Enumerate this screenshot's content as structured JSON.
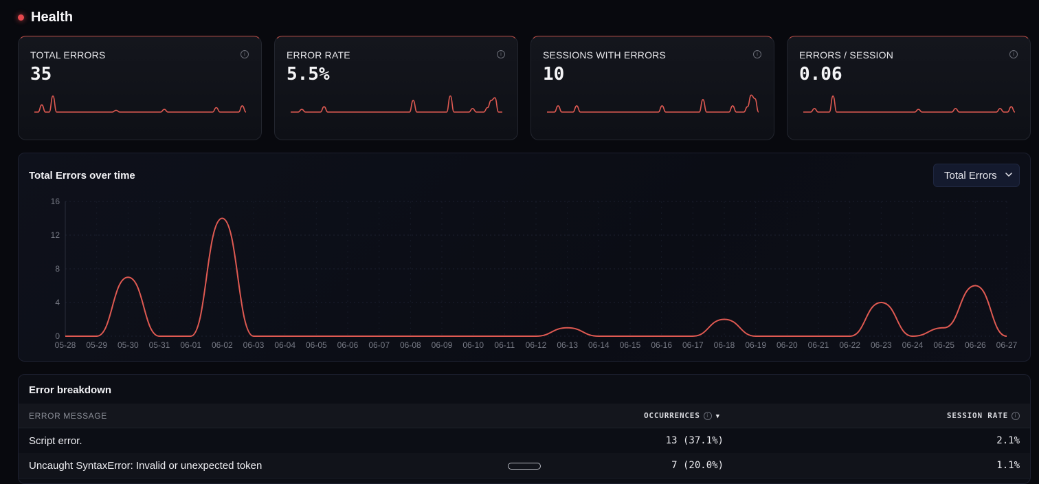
{
  "header": {
    "title": "Health"
  },
  "cards": [
    {
      "label": "TOTAL ERRORS",
      "value": "35",
      "spark": [
        0,
        0,
        0.8,
        0,
        0,
        1.8,
        0,
        0,
        0,
        0,
        0,
        0,
        0,
        0,
        0,
        0,
        0,
        0,
        0,
        0,
        0,
        0,
        0.2,
        0,
        0,
        0,
        0,
        0,
        0,
        0,
        0,
        0,
        0,
        0,
        0,
        0.3,
        0,
        0,
        0,
        0,
        0,
        0,
        0,
        0,
        0,
        0,
        0,
        0,
        0,
        0.5,
        0,
        0,
        0,
        0,
        0,
        0,
        0.7,
        0
      ]
    },
    {
      "label": "ERROR RATE",
      "value": "5.5%",
      "spark": [
        0,
        0,
        0,
        0.3,
        0,
        0,
        0,
        0,
        0,
        0.6,
        0,
        0,
        0,
        0,
        0,
        0,
        0,
        0,
        0,
        0,
        0,
        0,
        0,
        0,
        0,
        0,
        0,
        0,
        0,
        0,
        0,
        0,
        0,
        1.3,
        0,
        0,
        0,
        0,
        0,
        0,
        0,
        0,
        0,
        1.8,
        0,
        0,
        0,
        0,
        0,
        0.4,
        0,
        0,
        0,
        0.5,
        1.3,
        1.6,
        0,
        0
      ]
    },
    {
      "label": "SESSIONS WITH ERRORS",
      "value": "10",
      "spark": [
        0,
        0,
        0,
        0.7,
        0,
        0,
        0,
        0,
        0.7,
        0,
        0,
        0,
        0,
        0,
        0,
        0,
        0,
        0,
        0,
        0,
        0,
        0,
        0,
        0,
        0,
        0,
        0,
        0,
        0,
        0,
        0,
        0.7,
        0,
        0,
        0,
        0,
        0,
        0,
        0,
        0,
        0,
        0,
        1.4,
        0,
        0,
        0,
        0,
        0,
        0,
        0,
        0.7,
        0,
        0,
        0,
        0.6,
        1.9,
        1.5,
        0
      ]
    },
    {
      "label": "ERRORS / SESSION",
      "value": "0.06",
      "spark": [
        0,
        0,
        0,
        0.4,
        0,
        0,
        0,
        0,
        1.8,
        0,
        0,
        0,
        0,
        0,
        0,
        0,
        0,
        0,
        0,
        0,
        0,
        0,
        0,
        0,
        0,
        0,
        0,
        0,
        0,
        0,
        0,
        0.3,
        0,
        0,
        0,
        0,
        0,
        0,
        0,
        0,
        0,
        0.4,
        0,
        0,
        0,
        0,
        0,
        0,
        0,
        0,
        0,
        0,
        0,
        0.4,
        0,
        0,
        0.6,
        0
      ]
    }
  ],
  "chart": {
    "title": "Total Errors over time",
    "dropdown_value": "Total Errors"
  },
  "chart_data": {
    "type": "line",
    "x": [
      "05-28",
      "05-29",
      "05-30",
      "05-31",
      "06-01",
      "06-02",
      "06-03",
      "06-04",
      "06-05",
      "06-06",
      "06-07",
      "06-08",
      "06-09",
      "06-10",
      "06-11",
      "06-12",
      "06-13",
      "06-14",
      "06-15",
      "06-16",
      "06-17",
      "06-18",
      "06-19",
      "06-20",
      "06-21",
      "06-22",
      "06-23",
      "06-24",
      "06-25",
      "06-26",
      "06-27"
    ],
    "series": [
      {
        "values": [
          0,
          0,
          7,
          0,
          0,
          14,
          0,
          0,
          0,
          0,
          0,
          0,
          0,
          0,
          0,
          0,
          1,
          0,
          0,
          0,
          0,
          2,
          0,
          0,
          0,
          0,
          4,
          0,
          1,
          6,
          0
        ]
      }
    ],
    "ylim": [
      0,
      16
    ],
    "yticks": [
      0,
      4,
      8,
      12,
      16
    ],
    "grid": true,
    "color": "#e05a52"
  },
  "table": {
    "title": "Error breakdown",
    "columns": {
      "message": "ERROR MESSAGE",
      "occurrences": "OCCURRENCES",
      "session_rate": "SESSION RATE"
    },
    "sort_indicator": "▼",
    "info_glyph": "i",
    "rows": [
      {
        "message": "Script error.",
        "occurrences": "13 (37.1%)",
        "session_rate": "2.1%"
      },
      {
        "message": "Uncaught SyntaxError: Invalid or unexpected token",
        "occurrences": "7 (20.0%)",
        "session_rate": "1.1%"
      }
    ]
  },
  "colors": {
    "accent": "#e05a52",
    "status_dot": "#e5484d",
    "background": "#08090e"
  },
  "icons": {
    "info": "info-circle-icon",
    "dropdown": "chevron-down-icon",
    "status": "status-dot-icon"
  }
}
